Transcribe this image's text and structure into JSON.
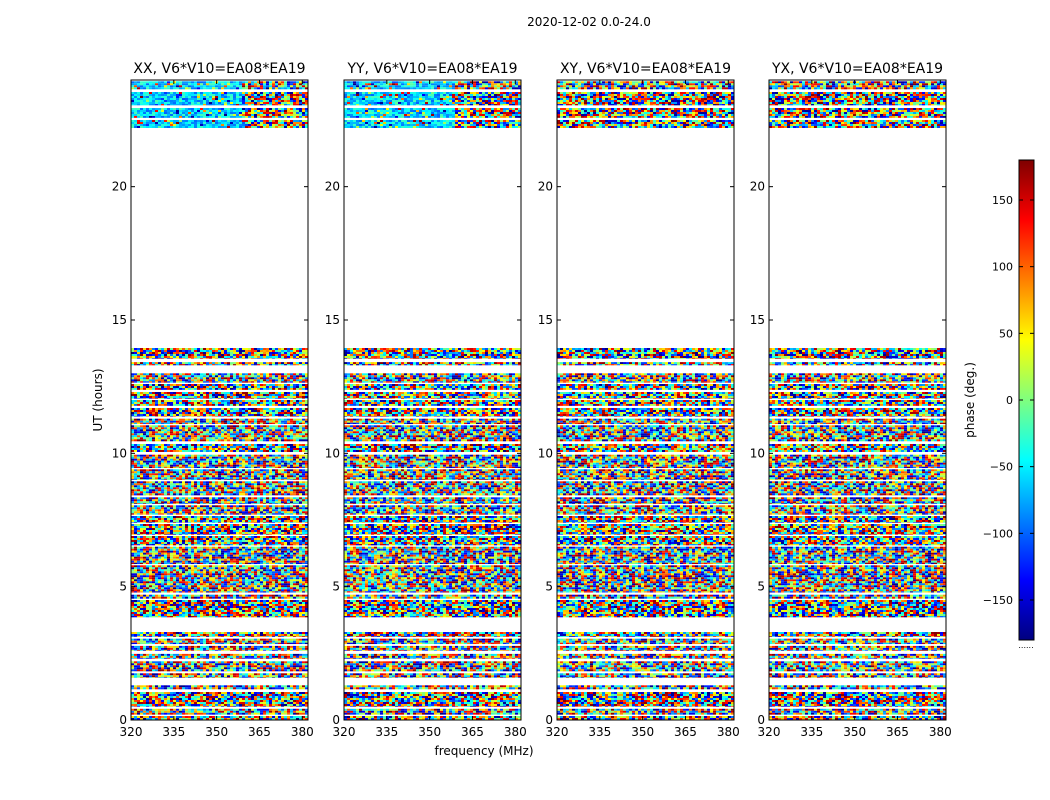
{
  "figure": {
    "suptitle": "2020-12-02 0.0-24.0",
    "xlabel": "frequency (MHz)",
    "ylabel": "UT (hours)",
    "colorbar_label": "phase (deg.)",
    "colorbar_footer": "......"
  },
  "chart_data": {
    "type": "heatmap",
    "colormap": "jet",
    "panels": [
      {
        "title": "XX, V6*V10=EA08*EA19",
        "coherent_regions": [
          {
            "ut_range": [
              22.2,
              24.0
            ],
            "phase_center": -60,
            "phase_spread": 40,
            "freq_range": [
              320,
              358
            ]
          }
        ]
      },
      {
        "title": "YY, V6*V10=EA08*EA19",
        "coherent_regions": [
          {
            "ut_range": [
              22.2,
              24.0
            ],
            "phase_center": -60,
            "phase_spread": 40,
            "freq_range": [
              320,
              358
            ]
          }
        ]
      },
      {
        "title": "XY, V6*V10=EA08*EA19",
        "coherent_regions": []
      },
      {
        "title": "YX, V6*V10=EA08*EA19",
        "coherent_regions": []
      }
    ],
    "x_range": [
      320,
      382
    ],
    "x_ticks": [
      "320",
      "335",
      "350",
      "365",
      "380"
    ],
    "x_tick_values": [
      320,
      335,
      350,
      365,
      380
    ],
    "y_range": [
      0,
      24
    ],
    "y_ticks": [
      "0",
      "5",
      "10",
      "15",
      "20"
    ],
    "y_tick_values": [
      0,
      5,
      10,
      15,
      20
    ],
    "data_blocks_ut": [
      [
        0.0,
        0.15
      ],
      [
        0.2,
        0.42
      ],
      [
        0.5,
        1.05
      ],
      [
        1.15,
        1.3
      ],
      [
        1.58,
        1.75
      ],
      [
        1.82,
        2.2
      ],
      [
        2.3,
        2.48
      ],
      [
        2.6,
        2.78
      ],
      [
        2.85,
        3.05
      ],
      [
        3.12,
        3.3
      ],
      [
        3.85,
        4.5
      ],
      [
        4.55,
        4.7
      ],
      [
        4.78,
        5.8
      ],
      [
        5.85,
        6.5
      ],
      [
        6.55,
        6.9
      ],
      [
        6.95,
        7.35
      ],
      [
        7.4,
        7.65
      ],
      [
        7.7,
        8.05
      ],
      [
        8.1,
        8.35
      ],
      [
        8.42,
        8.95
      ],
      [
        9.0,
        9.4
      ],
      [
        9.45,
        9.95
      ],
      [
        10.05,
        10.35
      ],
      [
        10.45,
        11.05
      ],
      [
        11.1,
        11.3
      ],
      [
        11.38,
        11.7
      ],
      [
        11.78,
        12.0
      ],
      [
        12.05,
        12.3
      ],
      [
        12.38,
        12.6
      ],
      [
        12.65,
        13.0
      ],
      [
        13.3,
        13.42
      ],
      [
        13.55,
        13.95
      ],
      [
        22.2,
        22.5
      ],
      [
        22.58,
        22.95
      ],
      [
        23.05,
        23.55
      ],
      [
        23.65,
        23.95
      ]
    ],
    "colorbar": {
      "range": [
        -180,
        180
      ],
      "ticks": [
        "−150",
        "−100",
        "−50",
        "0",
        "50",
        "100",
        "150"
      ],
      "tick_values": [
        -150,
        -100,
        -50,
        0,
        50,
        100,
        150
      ]
    }
  }
}
